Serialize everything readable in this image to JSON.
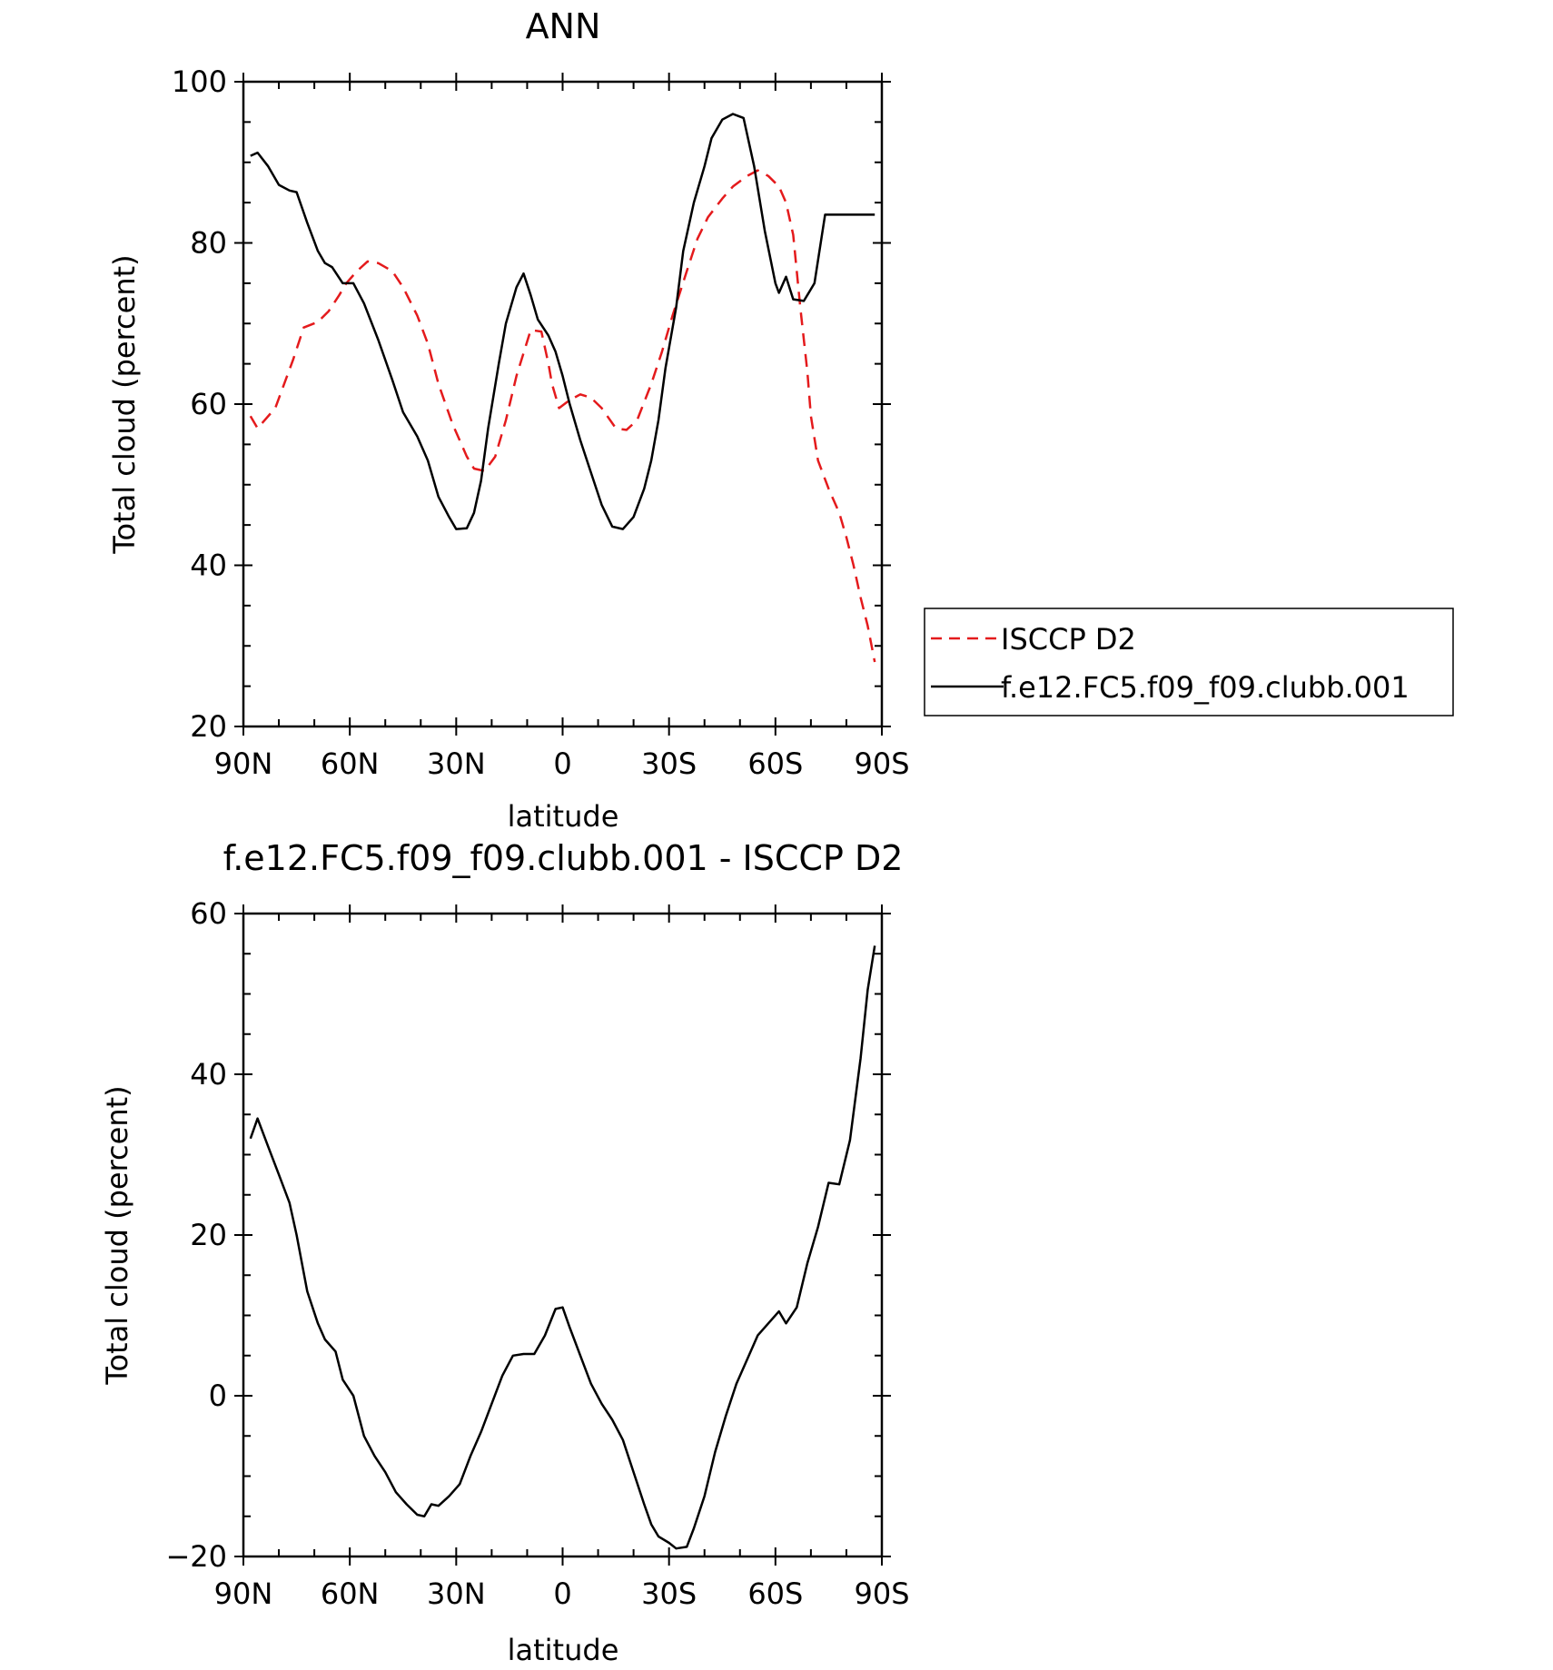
{
  "chart_data": [
    {
      "type": "line",
      "title": "ANN",
      "xlabel": "latitude",
      "ylabel": "Total cloud (percent)",
      "xlim": [
        90,
        -90
      ],
      "ylim": [
        20,
        100
      ],
      "y_major_ticks": [
        20,
        40,
        60,
        80,
        100
      ],
      "x_ticks": [
        90,
        60,
        30,
        0,
        -30,
        -60,
        -90
      ],
      "x_tick_labels": [
        "90N",
        "60N",
        "30N",
        "0",
        "30S",
        "60S",
        "90S"
      ],
      "legend": "right",
      "series": [
        {
          "name": "ISCCP D2",
          "color": "#e41a1c",
          "style": "dashed",
          "x": [
            88,
            86,
            81,
            76,
            73,
            69,
            66,
            63,
            61,
            58,
            55,
            52,
            48,
            45,
            41,
            38,
            35,
            31,
            27,
            25,
            22,
            19,
            16,
            13,
            9,
            6,
            4,
            3,
            1,
            -2,
            -5,
            -8,
            -11,
            -15,
            -18,
            -21,
            -25,
            -28,
            -31,
            -35,
            -38,
            -41,
            -45,
            -48,
            -52,
            -55,
            -58,
            -61,
            -63,
            -65,
            -67,
            -69,
            -70,
            -72,
            -75,
            -78,
            -80,
            -82,
            -84,
            -86,
            -88
          ],
          "y": [
            58.5,
            57.0,
            59.5,
            65.5,
            69.5,
            70.2,
            71.5,
            73.5,
            75.0,
            76.5,
            77.7,
            77.5,
            76.5,
            74.5,
            71.0,
            67.5,
            62.5,
            57.5,
            53.5,
            52.0,
            51.7,
            53.5,
            58.0,
            63.5,
            69.2,
            69.0,
            65.0,
            62.5,
            59.5,
            60.5,
            61.2,
            60.8,
            59.5,
            57.0,
            56.8,
            58.0,
            62.5,
            66.5,
            71.0,
            76.5,
            80.5,
            83.2,
            85.5,
            87.0,
            88.3,
            89.0,
            88.3,
            87.0,
            85.0,
            81.0,
            72.0,
            64.0,
            58.5,
            53.0,
            49.5,
            46.5,
            43.5,
            40.0,
            36.0,
            32.5,
            28.0
          ]
        },
        {
          "name": "f.e12.FC5.f09_f09.clubb.001",
          "color": "#000000",
          "style": "solid",
          "x": [
            88,
            86,
            83,
            80,
            77,
            75,
            72,
            69,
            67,
            65,
            62,
            59,
            56,
            52,
            48,
            45,
            41,
            38,
            35,
            32,
            30,
            27,
            25,
            23,
            21,
            18,
            16,
            13,
            11,
            9,
            7,
            4,
            2,
            0,
            -2,
            -5,
            -8,
            -11,
            -14,
            -17,
            -20,
            -23,
            -25,
            -27,
            -29,
            -32,
            -34,
            -37,
            -40,
            -42,
            -45,
            -48,
            -51,
            -54,
            -57,
            -60,
            -61,
            -63,
            -65,
            -68,
            -71,
            -74,
            -77,
            -80,
            -83,
            -85,
            -88
          ],
          "y": [
            90.8,
            91.2,
            89.5,
            87.2,
            86.5,
            86.3,
            82.5,
            79.0,
            77.5,
            77.0,
            75.0,
            75.0,
            72.5,
            68.0,
            63.0,
            59.0,
            56.0,
            53.0,
            48.5,
            46.0,
            44.5,
            44.6,
            46.5,
            50.5,
            57.0,
            65.0,
            70.0,
            74.5,
            76.2,
            73.5,
            70.5,
            68.5,
            66.5,
            63.5,
            60.0,
            55.5,
            51.5,
            47.5,
            44.8,
            44.5,
            46.0,
            49.5,
            53.0,
            58.0,
            64.5,
            72.0,
            79.0,
            85.0,
            89.5,
            93.0,
            95.3,
            96.0,
            95.5,
            89.5,
            81.5,
            75.0,
            73.8,
            75.8,
            73.0,
            72.8,
            75.0,
            83.5,
            83.5,
            83.5,
            83.5,
            83.5,
            83.5
          ]
        }
      ]
    },
    {
      "type": "line",
      "title": "f.e12.FC5.f09_f09.clubb.001 - ISCCP D2",
      "xlabel": "latitude",
      "ylabel": "Total cloud (percent)",
      "xlim": [
        90,
        -90
      ],
      "ylim": [
        -20,
        60
      ],
      "y_major_ticks": [
        -20,
        0,
        20,
        40,
        60
      ],
      "x_ticks": [
        90,
        60,
        30,
        0,
        -30,
        -60,
        -90
      ],
      "x_tick_labels": [
        "90N",
        "60N",
        "30N",
        "0",
        "30S",
        "60S",
        "90S"
      ],
      "series": [
        {
          "color": "#000000",
          "style": "solid",
          "x": [
            88,
            86,
            83,
            80,
            77,
            75,
            72,
            69,
            67,
            64,
            62,
            59,
            56,
            53,
            50,
            47,
            44,
            41,
            39,
            37,
            35,
            32,
            29,
            26,
            23,
            20,
            17,
            14,
            11,
            8,
            5,
            2,
            0,
            -2,
            -5,
            -8,
            -11,
            -14,
            -17,
            -20,
            -23,
            -25,
            -27,
            -30,
            -32,
            -35,
            -37,
            -40,
            -43,
            -46,
            -49,
            -52,
            -55,
            -58,
            -61,
            -63,
            -66,
            -69,
            -72,
            -75,
            -78,
            -81,
            -84,
            -86,
            -88
          ],
          "y": [
            32.0,
            34.5,
            31.0,
            27.5,
            24.0,
            20.0,
            13.0,
            9.0,
            7.0,
            5.5,
            2.0,
            0.0,
            -5.0,
            -7.5,
            -9.5,
            -12.0,
            -13.5,
            -14.8,
            -15.0,
            -13.5,
            -13.7,
            -12.5,
            -11.0,
            -7.5,
            -4.5,
            -1.0,
            2.5,
            5.0,
            5.2,
            5.2,
            7.5,
            10.8,
            11.0,
            8.5,
            5.0,
            1.5,
            -1.0,
            -3.0,
            -5.5,
            -9.5,
            -13.5,
            -16.0,
            -17.5,
            -18.3,
            -19.0,
            -18.8,
            -16.5,
            -12.5,
            -7.0,
            -2.5,
            1.5,
            4.5,
            7.5,
            9.0,
            10.5,
            9.0,
            11.0,
            16.5,
            21.0,
            26.5,
            26.3,
            31.8,
            42.0,
            50.5,
            56.0
          ]
        }
      ]
    }
  ]
}
